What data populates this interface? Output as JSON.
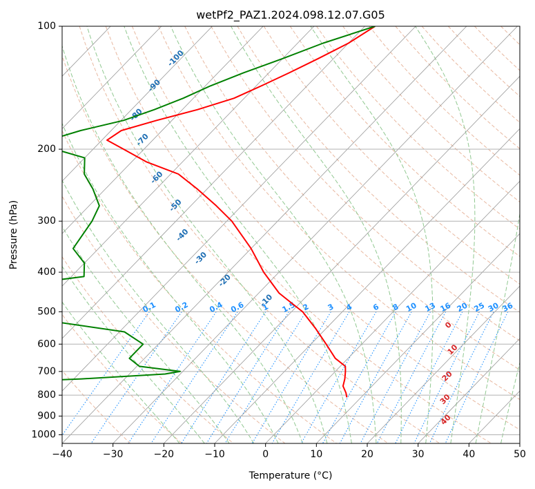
{
  "chart_data": {
    "type": "line",
    "title": "wetPf2_PAZ1.2024.098.12.07.G05",
    "xlabel": "Temperature (°C)",
    "ylabel": "Pressure (hPa)",
    "xlim": [
      -40,
      50
    ],
    "ylim": [
      1050,
      100
    ],
    "y_scale": "log",
    "skew": true,
    "x_ticks": [
      -40,
      -30,
      -20,
      -10,
      0,
      10,
      20,
      30,
      40,
      50
    ],
    "y_ticks": [
      100,
      200,
      300,
      400,
      500,
      600,
      700,
      800,
      900,
      1000
    ],
    "grid": true,
    "series": [
      {
        "role": "temperature",
        "color": "#ff0000",
        "points": [
          [
            100,
            -58.0
          ],
          [
            110,
            -60.0
          ],
          [
            120,
            -63.0
          ],
          [
            130,
            -66.0
          ],
          [
            140,
            -69.0
          ],
          [
            150,
            -72.0
          ],
          [
            160,
            -77.0
          ],
          [
            170,
            -83.0
          ],
          [
            180,
            -88.0
          ],
          [
            190,
            -89.0
          ],
          [
            200,
            -84.0
          ],
          [
            215,
            -77.0
          ],
          [
            230,
            -68.5
          ],
          [
            250,
            -62.0
          ],
          [
            275,
            -55.0
          ],
          [
            300,
            -49.0
          ],
          [
            350,
            -40.0
          ],
          [
            400,
            -33.0
          ],
          [
            450,
            -26.0
          ],
          [
            480,
            -21.0
          ],
          [
            500,
            -17.8
          ],
          [
            550,
            -12.0
          ],
          [
            600,
            -7.0
          ],
          [
            650,
            -2.5
          ],
          [
            680,
            1.0
          ],
          [
            700,
            2.0
          ],
          [
            730,
            3.3
          ],
          [
            760,
            4.3
          ],
          [
            790,
            6.2
          ],
          [
            810,
            7.2
          ]
        ]
      },
      {
        "role": "dewpoint",
        "color": "#008000",
        "points": [
          [
            100,
            -58.0
          ],
          [
            110,
            -65.0
          ],
          [
            120,
            -70.0
          ],
          [
            130,
            -75.0
          ],
          [
            140,
            -79.0
          ],
          [
            150,
            -82.0
          ],
          [
            160,
            -85.5
          ],
          [
            170,
            -89.5
          ],
          [
            180,
            -96.0
          ],
          [
            190,
            -100.5
          ],
          [
            200,
            -97.5
          ],
          [
            210,
            -90.0
          ],
          [
            230,
            -87.0
          ],
          [
            250,
            -82.5
          ],
          [
            275,
            -78.0
          ],
          [
            300,
            -76.5
          ],
          [
            350,
            -75.0
          ],
          [
            380,
            -70.0
          ],
          [
            410,
            -67.5
          ],
          [
            430,
            -79.0
          ],
          [
            455,
            -93.0
          ],
          [
            470,
            -89.0
          ],
          [
            490,
            -95.0
          ],
          [
            510,
            -86.0
          ],
          [
            530,
            -64.0
          ],
          [
            560,
            -49.0
          ],
          [
            600,
            -43.0
          ],
          [
            650,
            -43.0
          ],
          [
            680,
            -39.5
          ],
          [
            700,
            -30.5
          ],
          [
            710,
            -33.0
          ],
          [
            730,
            -48.5
          ],
          [
            755,
            -77.5
          ],
          [
            780,
            -60.0
          ],
          [
            808,
            -49.0
          ]
        ]
      }
    ],
    "dry_adiabat_labels": [
      "-100",
      "-90",
      "-80",
      "-70",
      "-60",
      "-50",
      "-40",
      "-30",
      "-20",
      "-10"
    ],
    "moist_adiabat_labels": [
      "0",
      "10",
      "20",
      "30",
      "40"
    ],
    "mixing_ratio_labels": [
      "0.1",
      "0.2",
      "0.4",
      "0.6",
      "1",
      "1.5",
      "2",
      "3",
      "4",
      "6",
      "8",
      "10",
      "13",
      "16",
      "20",
      "25",
      "30",
      "36"
    ],
    "colors": {
      "dry_adiabat": "#e8b8a0",
      "moist_adiabat": "#90c890",
      "isotherm": "#999999",
      "mixing_ratio": "#1e90ff",
      "dry_label": "#1f6fb4",
      "moist_label": "#d62728"
    }
  }
}
